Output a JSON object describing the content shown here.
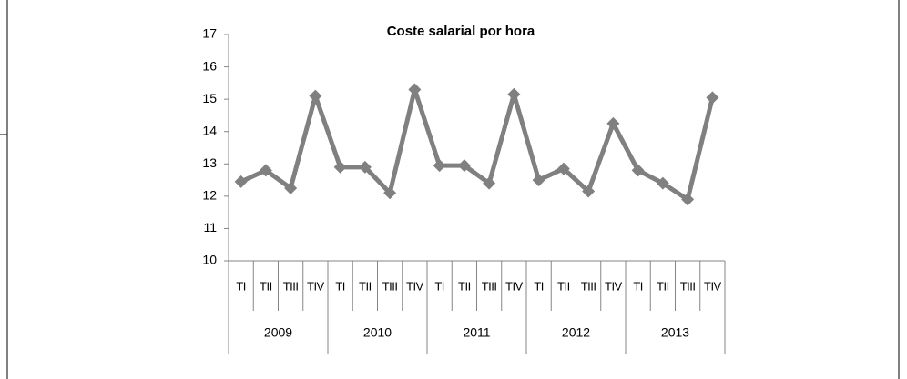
{
  "chart_data": {
    "type": "line",
    "title": "Coste salarial por hora",
    "categories": [
      "TI",
      "TII",
      "TIII",
      "TIV",
      "TI",
      "TII",
      "TIII",
      "TIV",
      "TI",
      "TII",
      "TIII",
      "TIV",
      "TI",
      "TII",
      "TIII",
      "TIV",
      "TI",
      "TII",
      "TIII",
      "TIV"
    ],
    "category_groups": [
      "2009",
      "2010",
      "2011",
      "2012",
      "2013"
    ],
    "series": [
      {
        "name": "Coste salarial por hora",
        "color": "#808080",
        "values": [
          12.45,
          12.8,
          12.25,
          15.1,
          12.9,
          12.9,
          12.1,
          15.3,
          12.95,
          12.95,
          12.4,
          15.15,
          12.5,
          12.85,
          12.15,
          14.25,
          12.8,
          12.4,
          11.9,
          15.05
        ]
      }
    ],
    "ylim": [
      10,
      17
    ],
    "yticks": [
      10,
      11,
      12,
      13,
      14,
      15,
      16,
      17
    ],
    "grid": false
  }
}
